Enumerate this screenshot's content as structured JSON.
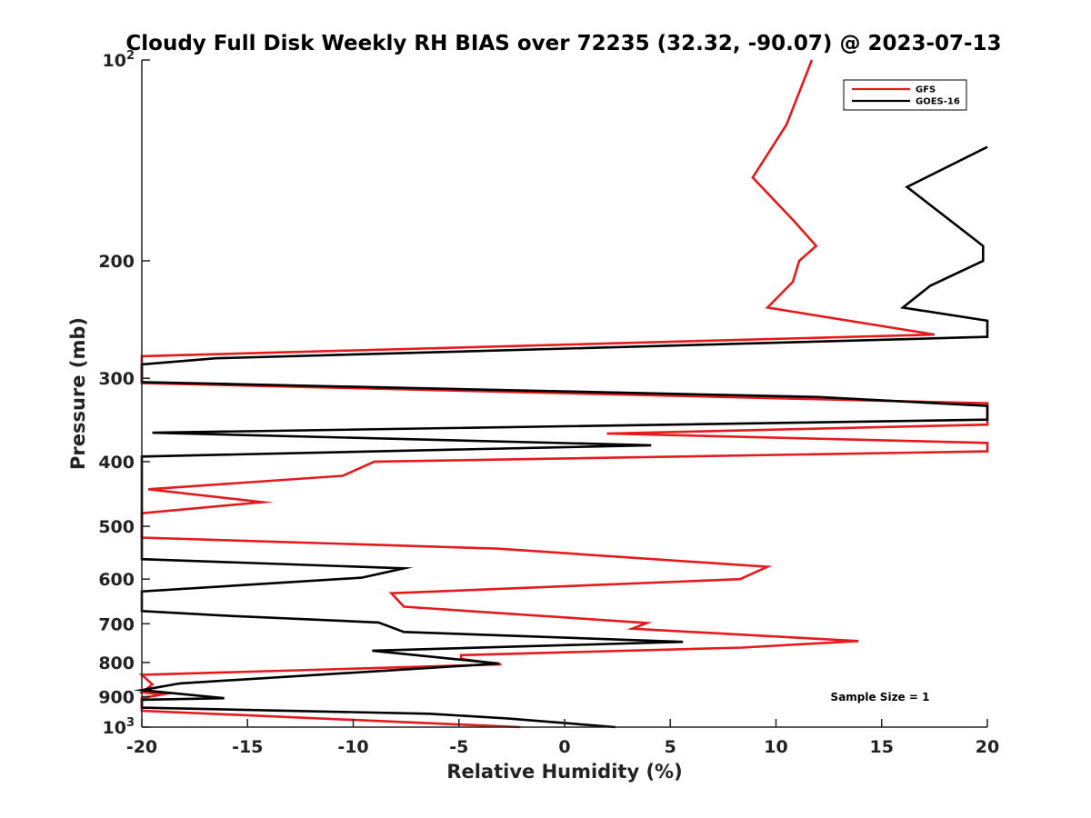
{
  "chart_data": {
    "type": "line",
    "title": "Cloudy Full Disk Weekly RH BIAS over 72235 (32.32, -90.07) @ 2023-07-13",
    "xlabel": "Relative Humidity (%)",
    "ylabel": "Pressure (mb)",
    "xlim": [
      -20,
      20
    ],
    "ylim": [
      1000,
      100
    ],
    "y_scale": "log",
    "y_reversed": true,
    "grid": false,
    "legend_position": "top-right",
    "x_ticks": [
      -20,
      -15,
      -10,
      -5,
      0,
      5,
      10,
      15,
      20
    ],
    "y_ticks": [
      {
        "value": 100,
        "base": "10",
        "exp": "2"
      },
      {
        "value": 200,
        "label": "200"
      },
      {
        "value": 300,
        "label": "300"
      },
      {
        "value": 400,
        "label": "400"
      },
      {
        "value": 500,
        "label": "500"
      },
      {
        "value": 600,
        "label": "600"
      },
      {
        "value": 700,
        "label": "700"
      },
      {
        "value": 800,
        "label": "800"
      },
      {
        "value": 900,
        "label": "900"
      },
      {
        "value": 1000,
        "base": "10",
        "exp": "3"
      }
    ],
    "annotation": "Sample Size = 1",
    "series": [
      {
        "name": "GFS",
        "color": "#e41a1c",
        "points": [
          [
            11.7,
            100
          ],
          [
            10.5,
            125
          ],
          [
            8.9,
            150
          ],
          [
            10.9,
            175
          ],
          [
            11.9,
            190
          ],
          [
            11.1,
            200
          ],
          [
            10.8,
            215
          ],
          [
            9.6,
            235
          ],
          [
            17.5,
            258
          ],
          [
            -20,
            278
          ],
          [
            -20,
            305
          ],
          [
            20,
            327
          ],
          [
            20,
            352
          ],
          [
            2.0,
            363
          ],
          [
            20,
            375
          ],
          [
            20,
            386
          ],
          [
            -9.0,
            400
          ],
          [
            -10.5,
            420
          ],
          [
            -19.7,
            440
          ],
          [
            -14.3,
            460
          ],
          [
            -20,
            478
          ],
          [
            -20,
            520
          ],
          [
            -3.2,
            540
          ],
          [
            9.6,
            575
          ],
          [
            8.3,
            600
          ],
          [
            -8.2,
            630
          ],
          [
            -7.6,
            660
          ],
          [
            3.9,
            698
          ],
          [
            3.2,
            712
          ],
          [
            13.9,
            743
          ],
          [
            8.4,
            760
          ],
          [
            -4.9,
            780
          ],
          [
            -4.9,
            790
          ],
          [
            -3.0,
            805
          ],
          [
            -20,
            835
          ],
          [
            -19.5,
            863
          ],
          [
            -20,
            887
          ],
          [
            -19.0,
            893
          ],
          [
            -20,
            905
          ],
          [
            -20,
            945
          ],
          [
            -2.1,
            1000
          ]
        ]
      },
      {
        "name": "GOES-16",
        "color": "#000000",
        "points": [
          [
            20,
            135
          ],
          [
            16.2,
            155
          ],
          [
            19.8,
            190
          ],
          [
            19.8,
            200
          ],
          [
            17.3,
            218
          ],
          [
            16.0,
            235
          ],
          [
            20,
            246
          ],
          [
            20,
            260
          ],
          [
            -16.5,
            280
          ],
          [
            -20,
            286
          ],
          [
            -20,
            304
          ],
          [
            12.0,
            320
          ],
          [
            20,
            330
          ],
          [
            20,
            346
          ],
          [
            -19.5,
            362
          ],
          [
            4.1,
            378
          ],
          [
            -20,
            393
          ],
          [
            -20,
            560
          ],
          [
            -7.6,
            578
          ],
          [
            -9.6,
            597
          ],
          [
            -20,
            626
          ],
          [
            -20,
            670
          ],
          [
            -16.3,
            680
          ],
          [
            -8.8,
            697
          ],
          [
            -7.6,
            720
          ],
          [
            5.6,
            745
          ],
          [
            -9.1,
            768
          ],
          [
            -3.1,
            803
          ],
          [
            -18.2,
            860
          ],
          [
            -20,
            880
          ],
          [
            -16.1,
            905
          ],
          [
            -20,
            910
          ],
          [
            -20,
            935
          ],
          [
            -6.4,
            955
          ],
          [
            -2.8,
            970
          ],
          [
            2.4,
            1000
          ]
        ]
      }
    ]
  }
}
